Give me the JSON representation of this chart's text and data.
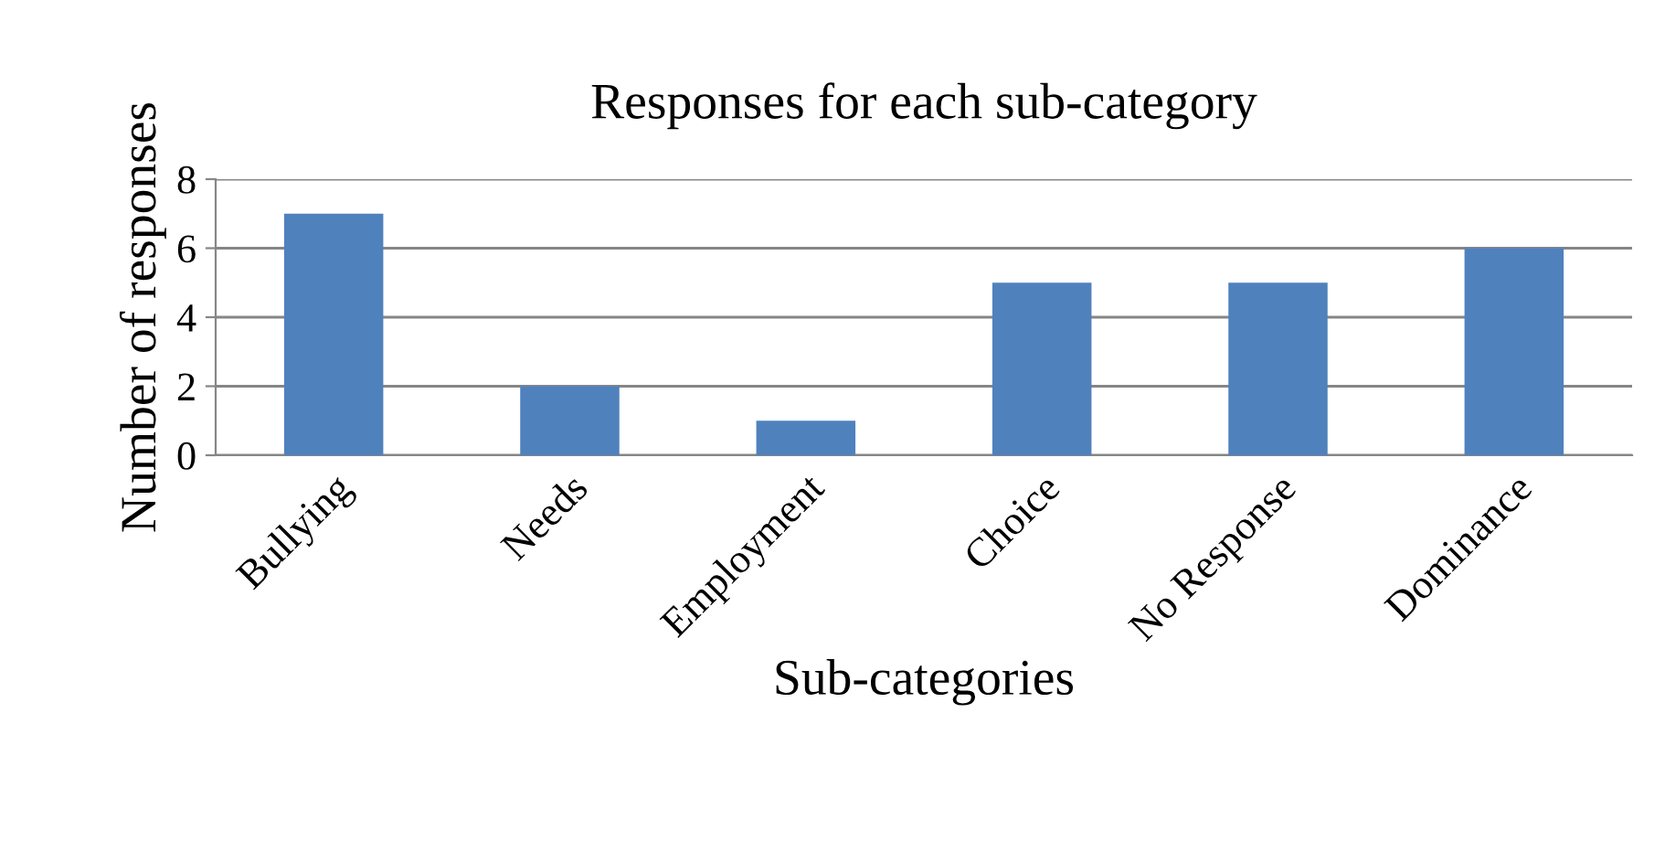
{
  "chart_data": {
    "type": "bar",
    "title": "Responses for each sub-category",
    "xlabel": "Sub-categories",
    "ylabel": "Number of responses",
    "categories": [
      "Bullying",
      "Needs",
      "Employment",
      "Choice",
      "No Response",
      "Dominance"
    ],
    "values": [
      7,
      2,
      1,
      5,
      5,
      6
    ],
    "color": "#4f81bd",
    "ylim": [
      0,
      8
    ],
    "yticks": [
      0,
      2,
      4,
      6,
      8
    ],
    "grid": "y",
    "legend": false
  }
}
